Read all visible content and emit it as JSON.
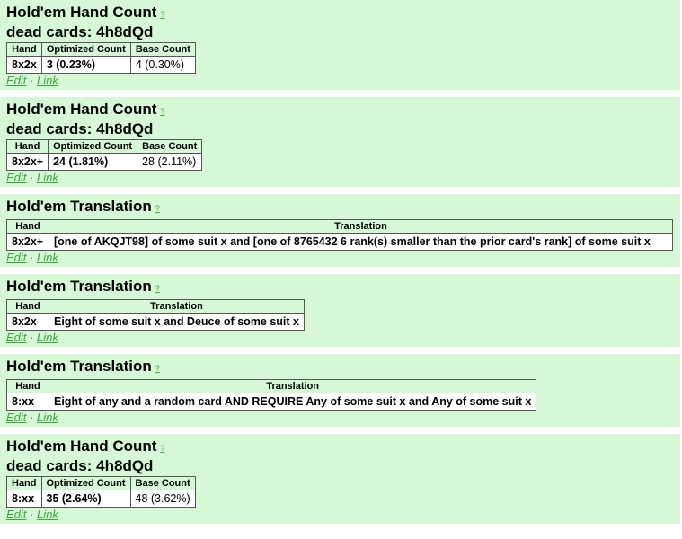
{
  "help_label": "?",
  "edit_label": "Edit",
  "link_label": "Link",
  "separator": "·",
  "panels": [
    {
      "title": "Hold'em Hand Count",
      "subtitle": "dead cards: 4h8dQd",
      "headers": [
        "Hand",
        "Optimized Count",
        "Base Count"
      ],
      "row": [
        "8x2x",
        "3 (0.23%)",
        "4 (0.30%)"
      ]
    },
    {
      "title": "Hold'em Hand Count",
      "subtitle": "dead cards: 4h8dQd",
      "headers": [
        "Hand",
        "Optimized Count",
        "Base Count"
      ],
      "row": [
        "8x2x+",
        "24 (1.81%)",
        "28 (2.11%)"
      ]
    },
    {
      "title": "Hold'em Translation",
      "headers": [
        "Hand",
        "Translation"
      ],
      "row": [
        "8x2x+",
        "[one of AKQJT98] of some suit x and [one of 8765432 6 rank(s) smaller than the prior card's rank] of some suit x"
      ]
    },
    {
      "title": "Hold'em Translation",
      "headers": [
        "Hand",
        "Translation"
      ],
      "row": [
        "8x2x",
        "Eight of some suit x and Deuce of some suit x"
      ]
    },
    {
      "title": "Hold'em Translation",
      "headers": [
        "Hand",
        "Translation"
      ],
      "row": [
        "8:xx",
        "Eight of any and a random card AND REQUIRE Any of some suit x and Any of some suit x"
      ]
    },
    {
      "title": "Hold'em Hand Count",
      "subtitle": "dead cards: 4h8dQd",
      "headers": [
        "Hand",
        "Optimized Count",
        "Base Count"
      ],
      "row": [
        "8:xx",
        "35 (2.64%)",
        "48 (3.62%)"
      ]
    }
  ]
}
